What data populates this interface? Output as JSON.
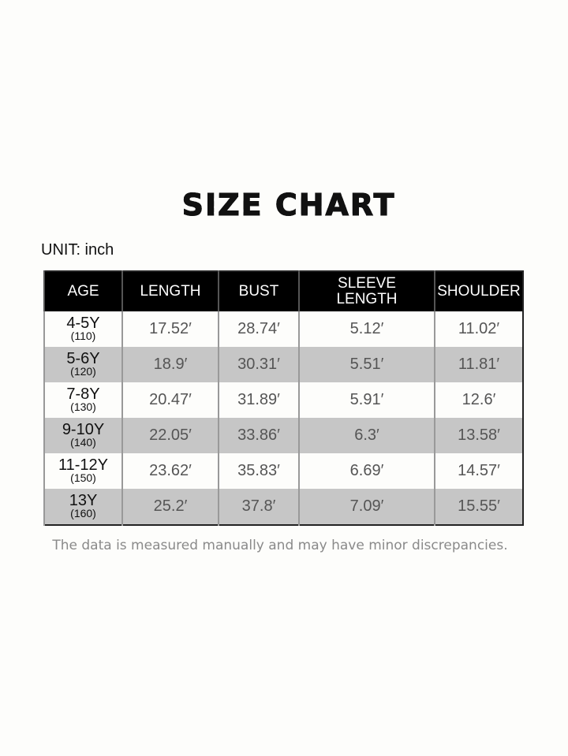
{
  "title": "SIZE CHART",
  "unit_label": "UNIT: inch",
  "headers": [
    "AGE",
    "LENGTH",
    "BUST",
    "SLEEVE LENGTH",
    "SHOULDER"
  ],
  "rows": [
    {
      "age": "4-5Y",
      "height": "(110)",
      "length": "17.52′",
      "bust": "28.74′",
      "sleeve": "5.12′",
      "shoulder": "11.02′"
    },
    {
      "age": "5-6Y",
      "height": "(120)",
      "length": "18.9′",
      "bust": "30.31′",
      "sleeve": "5.51′",
      "shoulder": "11.81′"
    },
    {
      "age": "7-8Y",
      "height": "(130)",
      "length": "20.47′",
      "bust": "31.89′",
      "sleeve": "5.91′",
      "shoulder": "12.6′"
    },
    {
      "age": "9-10Y",
      "height": "(140)",
      "length": "22.05′",
      "bust": "33.86′",
      "sleeve": "6.3′",
      "shoulder": "13.58′"
    },
    {
      "age": "11-12Y",
      "height": "(150)",
      "length": "23.62′",
      "bust": "35.83′",
      "sleeve": "6.69′",
      "shoulder": "14.57′"
    },
    {
      "age": "13Y",
      "height": "(160)",
      "length": "25.2′",
      "bust": "37.8′",
      "sleeve": "7.09′",
      "shoulder": "15.55′"
    }
  ],
  "note": "The data is measured manually and may have minor discrepancies.",
  "colors": {
    "header_bg": "#000000",
    "alt_row": "#c6c6c6",
    "value_text": "#555555"
  }
}
